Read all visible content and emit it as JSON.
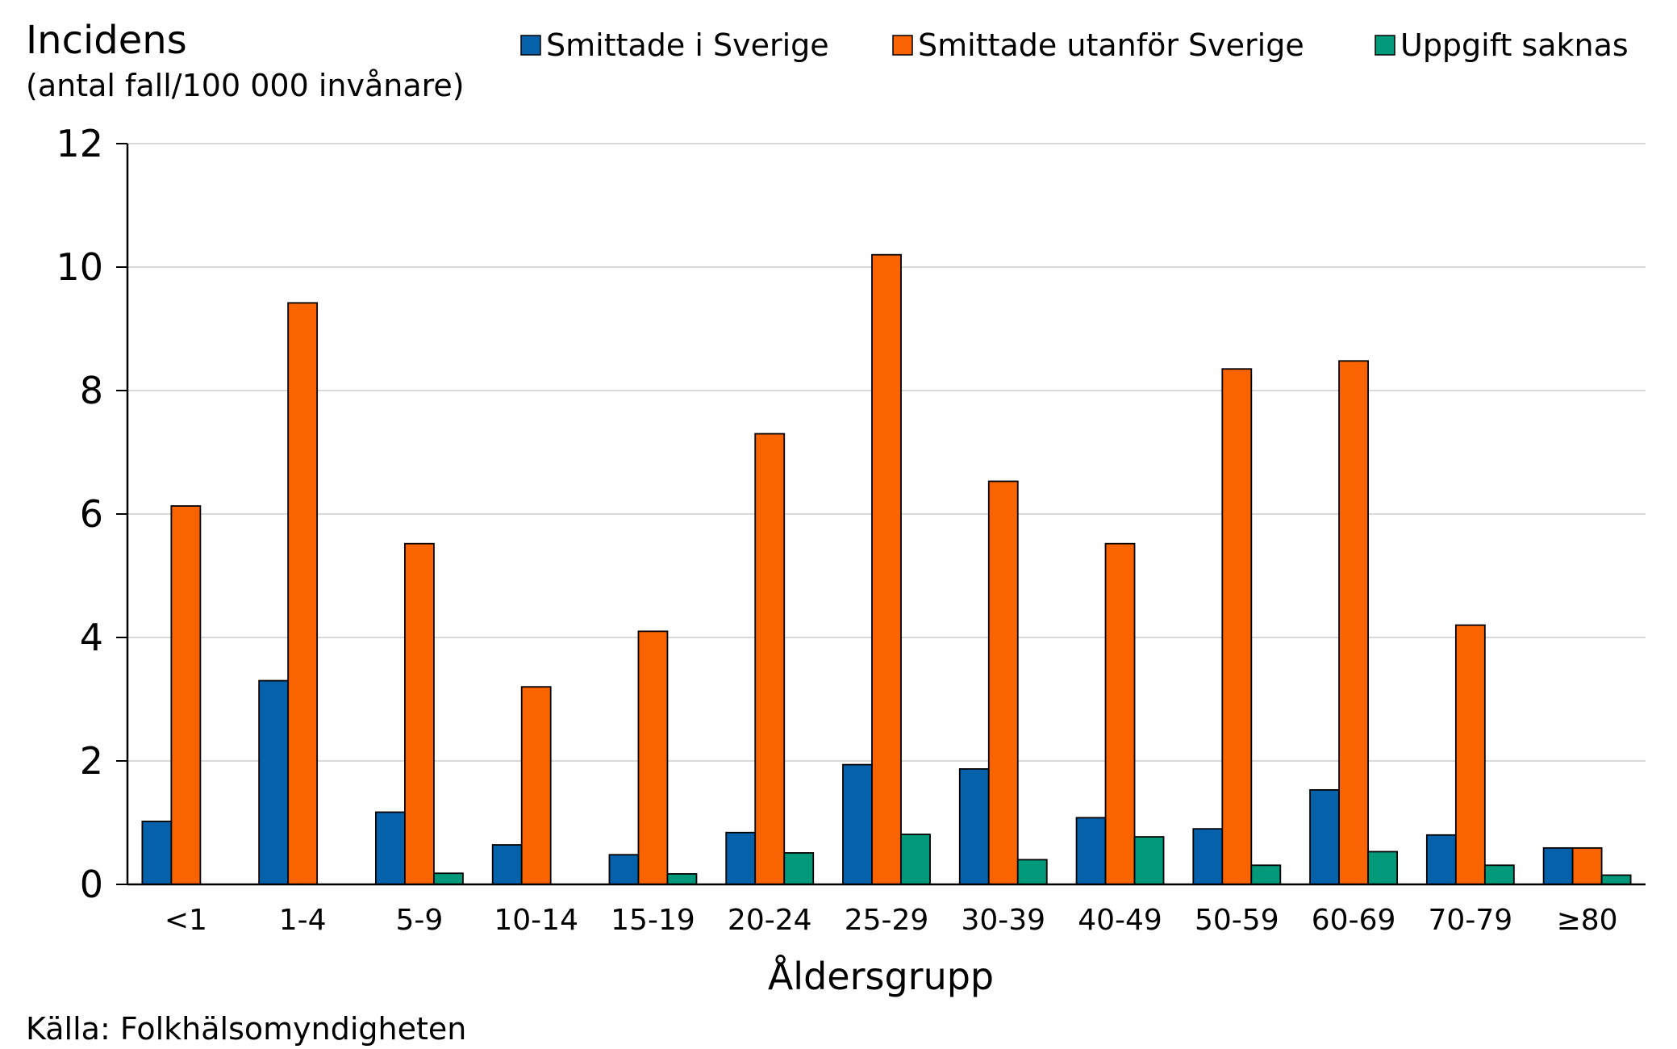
{
  "chart_data": {
    "type": "bar",
    "ylabel": "Incidens",
    "ylabel_sub": "(antal fall/100 000 invånare)",
    "xlabel": "Åldersgrupp",
    "source": "Källa: Folkhälsomyndigheten",
    "ylim": [
      0,
      12
    ],
    "yticks": [
      0,
      2,
      4,
      6,
      8,
      10,
      12
    ],
    "grid": true,
    "legend_position": "top",
    "categories": [
      "<1",
      "1-4",
      "5-9",
      "10-14",
      "15-19",
      "20-24",
      "25-29",
      "30-39",
      "40-49",
      "50-59",
      "60-69",
      "70-79",
      "≥80"
    ],
    "series": [
      {
        "name": "Smittade i Sverige",
        "color": "#0562aa",
        "values": [
          1.02,
          3.3,
          1.17,
          0.64,
          0.48,
          0.84,
          1.94,
          1.87,
          1.08,
          0.9,
          1.53,
          0.8,
          0.59
        ]
      },
      {
        "name": "Smittade utanför Sverige",
        "color": "#fa6400",
        "values": [
          6.13,
          9.42,
          5.52,
          3.2,
          4.1,
          7.3,
          10.2,
          6.53,
          5.52,
          8.35,
          8.48,
          4.2,
          0.59
        ]
      },
      {
        "name": "Uppgift saknas",
        "color": "#00997a",
        "values": [
          0,
          0,
          0.18,
          0,
          0.17,
          0.51,
          0.81,
          0.4,
          0.77,
          0.31,
          0.53,
          0.31,
          0.15
        ]
      }
    ]
  }
}
